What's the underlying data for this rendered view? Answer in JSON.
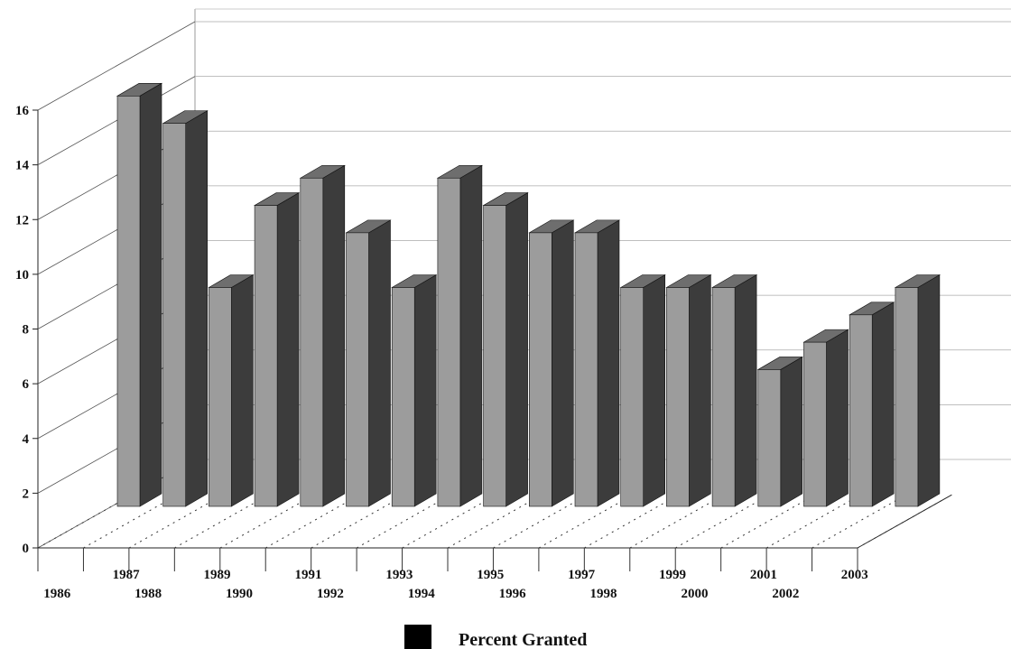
{
  "chart_data": {
    "type": "bar",
    "categories": [
      "1986",
      "1987",
      "1988",
      "1989",
      "1990",
      "1991",
      "1992",
      "1993",
      "1994",
      "1995",
      "1996",
      "1997",
      "1998",
      "1999",
      "2000",
      "2001",
      "2002",
      "2003"
    ],
    "series": [
      {
        "name": "Percent Granted",
        "values": [
          15,
          14,
          8,
          11,
          12,
          10,
          8,
          12,
          11,
          10,
          10,
          8,
          8,
          8,
          5,
          6,
          7,
          8
        ]
      }
    ],
    "title": "",
    "xlabel": "",
    "ylabel": "",
    "ylim": [
      0,
      16
    ],
    "yticks": [
      "0",
      "2",
      "4",
      "6",
      "8",
      "10",
      "12",
      "14",
      "16"
    ],
    "grid": true,
    "legend": "bottom",
    "style": "3d",
    "colors": {
      "front": "#9c9c9c",
      "side": "#3c3c3c",
      "top": "#6e6e6e",
      "legend_swatch": "#000000"
    }
  }
}
